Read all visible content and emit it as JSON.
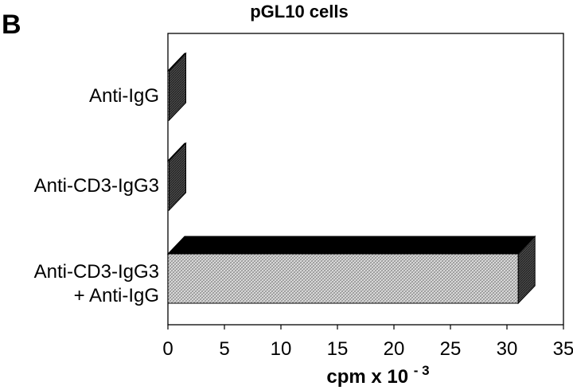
{
  "panel_label": "B",
  "chart_data": {
    "type": "bar",
    "orientation": "horizontal",
    "style": "3d",
    "title": "pGL10 cells",
    "categories": [
      [
        "Anti-IgG"
      ],
      [
        "Anti-CD3-IgG3"
      ],
      [
        "Anti-CD3-IgG3",
        "+ Anti-IgG"
      ]
    ],
    "values": [
      0,
      0,
      31
    ],
    "xlabel": {
      "base": "cpm x 10",
      "exponent": "- 3"
    },
    "xlim": [
      0,
      35
    ],
    "xticks": [
      "0",
      "5",
      "10",
      "15",
      "20",
      "25",
      "30",
      "35"
    ],
    "grid": false,
    "legend": "none",
    "colors": {
      "bar_face": "#d4d4d4",
      "bar_top": "#000000",
      "bar_side": "#555555",
      "axis": "#000000"
    }
  }
}
